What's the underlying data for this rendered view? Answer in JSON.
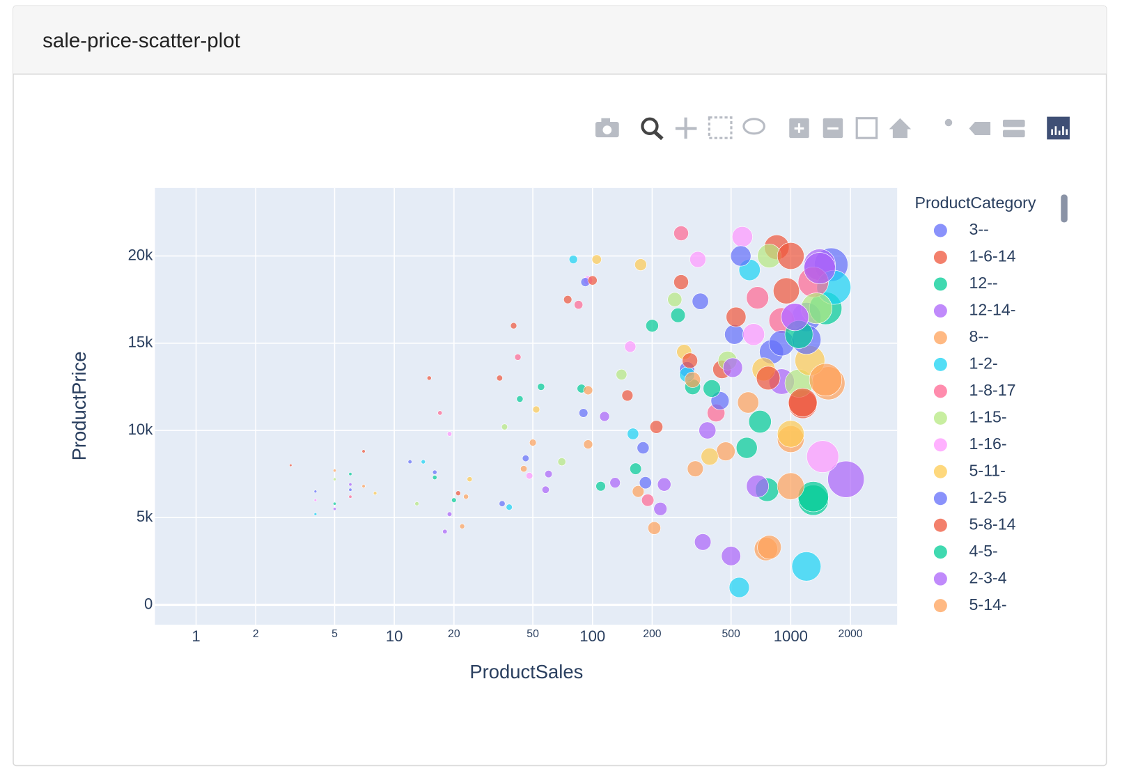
{
  "card": {
    "title": "sale-price-scatter-plot"
  },
  "chart_data": {
    "type": "scatter",
    "x_label": "ProductSales",
    "y_label": "ProductPrice",
    "legend_title": "ProductCategory",
    "log_x": true,
    "grid": true,
    "legend": "right",
    "xlim": [
      0.62,
      3444
    ],
    "ylim": [
      -1140,
      23900
    ],
    "xticks": [
      1,
      2,
      5,
      10,
      20,
      50,
      100,
      200,
      500,
      1000,
      2000
    ],
    "yticks": [
      0,
      {
        "value": 5000,
        "label": "5k"
      },
      {
        "value": 10000,
        "label": "10k"
      },
      {
        "value": 15000,
        "label": "15k"
      },
      {
        "value": 20000,
        "label": "20k"
      }
    ],
    "series": [
      {
        "name": "3--",
        "color": "#636efa",
        "x": [
          4,
          12,
          35,
          90,
          180,
          300,
          520,
          800,
          1200,
          1600
        ],
        "values": [
          6500,
          8200,
          5800,
          11000,
          9000,
          13500,
          15500,
          14500,
          16500,
          19500
        ],
        "sizes": [
          4,
          12,
          35,
          90,
          180,
          300,
          520,
          800,
          1200,
          1600
        ]
      },
      {
        "name": "1-6-14",
        "color": "#EF553B",
        "x": [
          3,
          15,
          40,
          75,
          150,
          280,
          450,
          850,
          950,
          1150
        ],
        "values": [
          8000,
          13000,
          16000,
          17500,
          12000,
          18500,
          13500,
          20500,
          18000,
          11500
        ],
        "sizes": [
          3,
          15,
          40,
          75,
          150,
          280,
          450,
          850,
          950,
          1150
        ]
      },
      {
        "name": "12--",
        "color": "#00cc96",
        "x": [
          6,
          20,
          55,
          110,
          200,
          320,
          600,
          700,
          1300,
          1500
        ],
        "values": [
          7500,
          6000,
          12500,
          6800,
          16000,
          12500,
          9000,
          10500,
          6000,
          17000
        ],
        "sizes": [
          6,
          20,
          55,
          110,
          200,
          320,
          600,
          700,
          1300,
          1500
        ]
      },
      {
        "name": "12-14-",
        "color": "#ab63fa",
        "x": [
          5,
          18,
          60,
          130,
          220,
          380,
          500,
          900,
          1400,
          1900
        ],
        "values": [
          5500,
          4200,
          7500,
          7000,
          5500,
          10000,
          2800,
          12800,
          19500,
          7200
        ],
        "sizes": [
          5,
          18,
          60,
          130,
          220,
          380,
          500,
          900,
          1400,
          1900
        ]
      },
      {
        "name": "8--",
        "color": "#FFA15A",
        "x": [
          7,
          22,
          45,
          95,
          170,
          330,
          470,
          750,
          1000,
          1550
        ],
        "values": [
          6800,
          4500,
          7800,
          9200,
          6500,
          7800,
          8800,
          3200,
          9500,
          12700
        ],
        "sizes": [
          7,
          22,
          45,
          95,
          170,
          330,
          470,
          750,
          1000,
          1550
        ]
      },
      {
        "name": "1-2-",
        "color": "#19d3f3",
        "x": [
          4,
          14,
          38,
          80,
          160,
          300,
          550,
          620,
          1200,
          1650
        ],
        "values": [
          5200,
          8200,
          5600,
          19800,
          9800,
          13200,
          1000,
          19200,
          2200,
          18200
        ],
        "sizes": [
          4,
          14,
          38,
          80,
          160,
          300,
          550,
          620,
          1200,
          1650
        ]
      },
      {
        "name": "1-8-17",
        "color": "#FF6692",
        "x": [
          6,
          17,
          42,
          85,
          190,
          280,
          420,
          680,
          900,
          1300
        ],
        "values": [
          6200,
          11000,
          14200,
          17200,
          6000,
          21300,
          11000,
          17600,
          16300,
          18500
        ],
        "sizes": [
          6,
          17,
          42,
          85,
          190,
          280,
          420,
          680,
          900,
          1300
        ]
      },
      {
        "name": "1-15-",
        "color": "#B6E880",
        "x": [
          5,
          13,
          36,
          70,
          140,
          260,
          480,
          780,
          1100,
          1350
        ],
        "values": [
          7200,
          5800,
          10200,
          8200,
          13200,
          17500,
          14000,
          20000,
          12700,
          17000
        ],
        "sizes": [
          5,
          13,
          36,
          70,
          140,
          260,
          480,
          780,
          1100,
          1350
        ]
      },
      {
        "name": "1-16-",
        "color": "#FF97FF",
        "x": [
          4,
          19,
          48,
          95,
          155,
          340,
          570,
          650,
          1050,
          1450
        ],
        "values": [
          6000,
          9800,
          7400,
          18600,
          14800,
          19800,
          21100,
          15500,
          16500,
          8500
        ],
        "sizes": [
          4,
          19,
          48,
          95,
          155,
          340,
          570,
          650,
          1050,
          1450
        ]
      },
      {
        "name": "5-11-",
        "color": "#FECB52",
        "x": [
          8,
          24,
          52,
          105,
          175,
          290,
          390,
          730,
          1000,
          1250
        ],
        "values": [
          6400,
          7200,
          11200,
          19800,
          19500,
          14500,
          8500,
          13500,
          9800,
          14000
        ],
        "sizes": [
          8,
          24,
          52,
          105,
          175,
          290,
          390,
          730,
          1000,
          1250
        ]
      },
      {
        "name": "1-2-5",
        "color": "#636efa",
        "x": [
          6,
          16,
          46,
          92,
          185,
          350,
          440,
          560,
          900,
          1200
        ],
        "values": [
          6600,
          7600,
          8400,
          18500,
          7000,
          17400,
          11700,
          20000,
          15000,
          15200
        ],
        "sizes": [
          6,
          16,
          46,
          92,
          185,
          350,
          440,
          560,
          900,
          1200
        ]
      },
      {
        "name": "5-8-14",
        "color": "#EF553B",
        "x": [
          7,
          21,
          34,
          100,
          210,
          310,
          530,
          770,
          1000,
          1150
        ],
        "values": [
          8800,
          6400,
          13000,
          18600,
          10200,
          14000,
          16500,
          13000,
          20000,
          11600
        ],
        "sizes": [
          7,
          21,
          34,
          100,
          210,
          310,
          530,
          770,
          1000,
          1150
        ]
      },
      {
        "name": "4-5-",
        "color": "#00cc96",
        "x": [
          5,
          16,
          43,
          88,
          165,
          270,
          400,
          760,
          1100,
          1300
        ],
        "values": [
          5800,
          7300,
          11800,
          12400,
          7800,
          16600,
          12400,
          6600,
          15500,
          6200
        ],
        "sizes": [
          5,
          16,
          43,
          88,
          165,
          270,
          400,
          760,
          1100,
          1300
        ]
      },
      {
        "name": "2-3-4",
        "color": "#ab63fa",
        "x": [
          6,
          19,
          58,
          115,
          230,
          360,
          510,
          680,
          1050,
          1400
        ],
        "values": [
          6900,
          5200,
          6600,
          10800,
          6900,
          3600,
          13600,
          6800,
          16500,
          19300
        ],
        "sizes": [
          6,
          19,
          58,
          115,
          230,
          360,
          510,
          680,
          1050,
          1400
        ]
      },
      {
        "name": "5-14-",
        "color": "#FFA15A",
        "x": [
          5,
          23,
          50,
          95,
          205,
          320,
          610,
          780,
          1000,
          1500
        ],
        "values": [
          7700,
          6200,
          9300,
          12300,
          4400,
          12900,
          11600,
          3300,
          6800,
          12900
        ],
        "sizes": [
          5,
          23,
          50,
          95,
          205,
          320,
          610,
          780,
          1000,
          1500
        ]
      }
    ]
  }
}
